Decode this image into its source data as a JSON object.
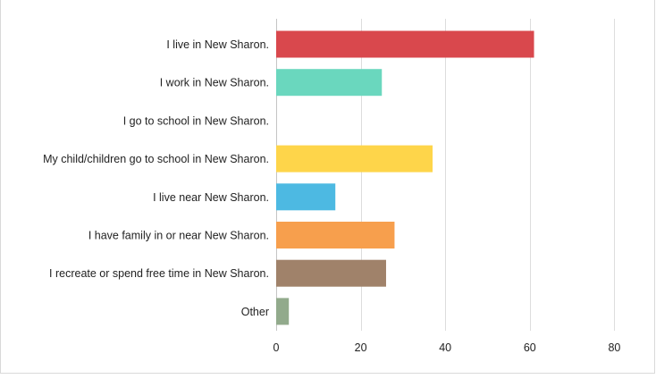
{
  "chart_data": {
    "type": "bar",
    "orientation": "horizontal",
    "title": "",
    "xlabel": "",
    "ylabel": "",
    "categories": [
      "I live in New Sharon.",
      "I work in New Sharon.",
      "I go to school in New Sharon.",
      "My child/children go to school in New Sharon.",
      "I live near New Sharon.",
      "I have family in or near New Sharon.",
      "I recreate or spend free time in New Sharon.",
      "Other"
    ],
    "values": [
      61,
      25,
      0,
      37,
      14,
      28,
      26,
      3
    ],
    "colors": [
      "#d9484d",
      "#6ad7be",
      "#6a9fd6",
      "#fed54a",
      "#4db9e2",
      "#f79f4d",
      "#a0826a",
      "#92aa8c"
    ],
    "xlim": [
      0,
      80
    ],
    "xticks": [
      0,
      20,
      40,
      60,
      80
    ],
    "grid": true,
    "legend": "none"
  }
}
